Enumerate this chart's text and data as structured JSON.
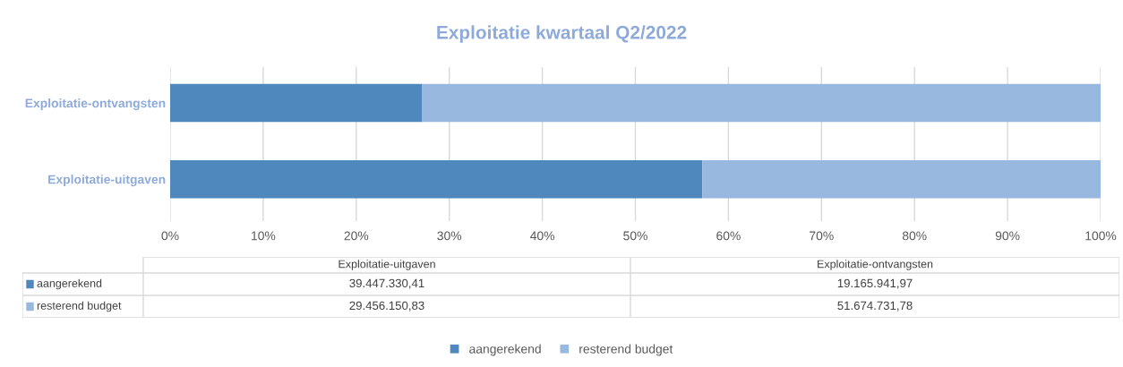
{
  "chart_data": {
    "type": "bar",
    "orientation": "horizontal",
    "stacked": true,
    "title": "Exploitatie kwartaal Q2/2022",
    "categories": [
      "Exploitatie-ontvangsten",
      "Exploitatie-uitgaven"
    ],
    "series": [
      {
        "name": "aangerekend",
        "color": "#4f88bd",
        "values": [
          27.1,
          57.2
        ]
      },
      {
        "name": "resterend budget",
        "color": "#98b8df",
        "values": [
          72.9,
          42.8
        ]
      }
    ],
    "annotations": [
      "39.447.330,41",
      "19.165.941,97",
      "29.456.150,83",
      "51.674.731,78"
    ],
    "xlim": [
      0,
      100
    ],
    "xticks": [
      {
        "value": 0,
        "label": "0%"
      },
      {
        "value": 10,
        "label": "10%"
      },
      {
        "value": 20,
        "label": "20%"
      },
      {
        "value": 30,
        "label": "30%"
      },
      {
        "value": 40,
        "label": "40%"
      },
      {
        "value": 50,
        "label": "50%"
      },
      {
        "value": 60,
        "label": "60%"
      },
      {
        "value": 70,
        "label": "70%"
      },
      {
        "value": 80,
        "label": "80%"
      },
      {
        "value": 90,
        "label": "90%"
      },
      {
        "value": 100,
        "label": "100%"
      }
    ],
    "grid": "x",
    "legend": "bottom"
  }
}
